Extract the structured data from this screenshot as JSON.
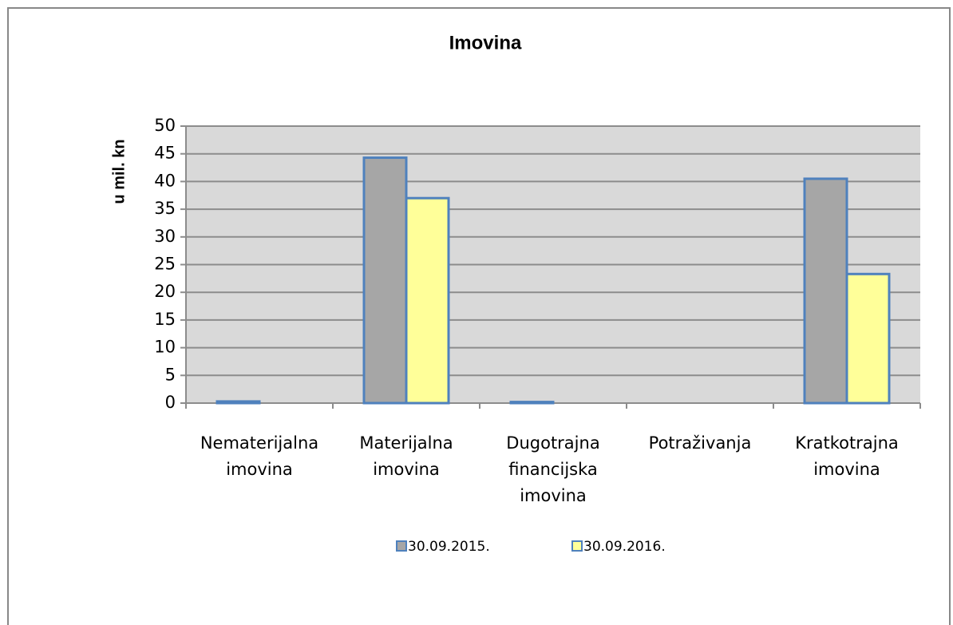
{
  "chart_data": {
    "type": "bar",
    "title": "Imovina",
    "y_label": "u mil. kn",
    "categories": [
      "Nematerijalna imovina",
      "Materijalna imovina",
      "Dugotrajna financijska imovina",
      "Potraživanja",
      "Kratkotrajna imovina"
    ],
    "series": [
      {
        "name": "30.09.2015.",
        "color": "#a6a6a6",
        "values": [
          0.3,
          44.3,
          0.2,
          0,
          40.5
        ]
      },
      {
        "name": "30.09.2016.",
        "color": "#ffff99",
        "values": [
          0,
          37,
          0,
          0,
          23.3
        ]
      }
    ],
    "ylim": [
      0,
      50
    ],
    "yticks": [
      0,
      5,
      10,
      15,
      20,
      25,
      30,
      35,
      40,
      45,
      50
    ],
    "grid": true,
    "legend": "bottom"
  }
}
